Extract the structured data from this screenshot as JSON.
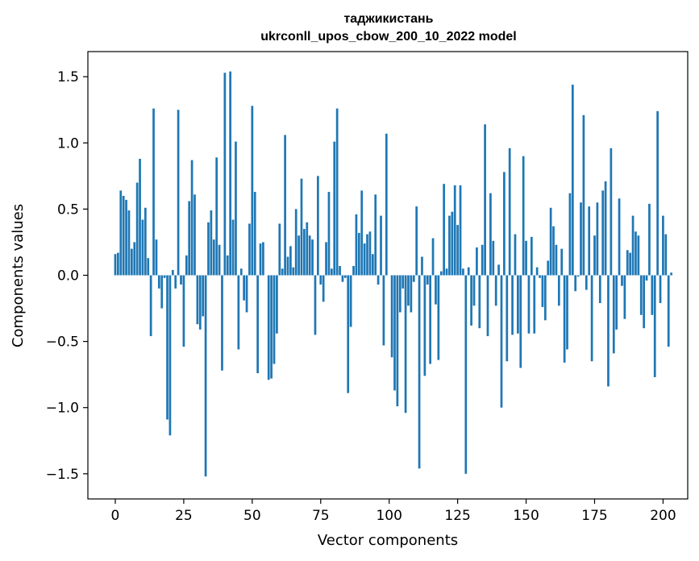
{
  "chart_data": {
    "type": "bar",
    "title": "таджикистань",
    "subtitle": "ukrconll_upos_cbow_200_10_2022 model",
    "xlabel": "Vector components",
    "ylabel": "Components values",
    "xlim": [
      -10,
      209
    ],
    "ylim": [
      -1.69,
      1.69
    ],
    "xticks": [
      0,
      25,
      50,
      75,
      100,
      125,
      150,
      175,
      200
    ],
    "yticks": [
      -1.5,
      -1.0,
      -0.5,
      0.0,
      0.5,
      1.0,
      1.5
    ],
    "ytick_labels": [
      "−1.5",
      "−1.0",
      "−0.5",
      "0.0",
      "0.5",
      "1.0",
      "1.5"
    ],
    "xtick_labels": [
      "0",
      "25",
      "50",
      "75",
      "100",
      "125",
      "150",
      "175",
      "200"
    ],
    "bar_color": "#1f77b4",
    "grid": false,
    "values": [
      0.16,
      0.17,
      0.64,
      0.6,
      0.57,
      0.49,
      0.2,
      0.25,
      0.7,
      0.88,
      0.42,
      0.51,
      0.13,
      -0.46,
      1.26,
      0.27,
      -0.1,
      -0.25,
      -0.02,
      -1.09,
      -1.21,
      0.04,
      -0.1,
      1.25,
      -0.07,
      -0.54,
      0.15,
      0.56,
      0.87,
      0.61,
      -0.37,
      -0.41,
      -0.31,
      -1.52,
      0.4,
      0.49,
      0.27,
      0.89,
      0.23,
      -0.72,
      1.53,
      0.15,
      1.54,
      0.42,
      1.01,
      -0.56,
      0.05,
      -0.19,
      -0.28,
      0.39,
      1.28,
      0.63,
      -0.74,
      0.24,
      0.25,
      0.0,
      -0.79,
      -0.78,
      -0.67,
      -0.44,
      0.39,
      0.05,
      1.06,
      0.14,
      0.22,
      0.06,
      0.5,
      0.3,
      0.73,
      0.35,
      0.4,
      0.3,
      0.27,
      -0.45,
      0.75,
      -0.07,
      -0.2,
      0.25,
      0.63,
      0.05,
      1.01,
      1.26,
      0.07,
      -0.05,
      -0.02,
      -0.89,
      -0.39,
      0.07,
      0.46,
      0.32,
      0.64,
      0.24,
      0.31,
      0.33,
      0.16,
      0.61,
      -0.07,
      0.45,
      -0.53,
      1.07,
      0.0,
      -0.62,
      -0.87,
      -0.99,
      -0.28,
      -0.1,
      -1.04,
      -0.23,
      -0.28,
      -0.05,
      0.52,
      -1.46,
      0.14,
      -0.76,
      -0.07,
      -0.67,
      0.28,
      -0.22,
      -0.64,
      0.03,
      0.69,
      0.05,
      0.45,
      0.48,
      0.68,
      0.38,
      0.68,
      0.05,
      -1.5,
      0.06,
      -0.38,
      -0.23,
      0.21,
      -0.4,
      0.23,
      1.14,
      -0.46,
      0.62,
      0.26,
      -0.23,
      0.08,
      -1.0,
      0.78,
      -0.65,
      0.96,
      -0.45,
      0.31,
      -0.44,
      -0.7,
      0.9,
      0.26,
      -0.44,
      0.29,
      -0.44,
      0.06,
      -0.02,
      -0.24,
      -0.34,
      0.11,
      0.51,
      0.37,
      0.23,
      -0.23,
      0.2,
      -0.66,
      -0.56,
      0.62,
      1.44,
      -0.12,
      -0.01,
      0.55,
      1.21,
      -0.11,
      0.52,
      -0.65,
      0.3,
      0.55,
      -0.21,
      0.64,
      0.71,
      -0.84,
      0.96,
      -0.59,
      -0.41,
      0.58,
      -0.08,
      -0.33,
      0.19,
      0.17,
      0.45,
      0.33,
      0.3,
      -0.3,
      -0.4,
      -0.04,
      0.54,
      -0.3,
      -0.77,
      1.24,
      -0.21,
      0.45,
      0.31,
      -0.54,
      0.02
    ]
  }
}
